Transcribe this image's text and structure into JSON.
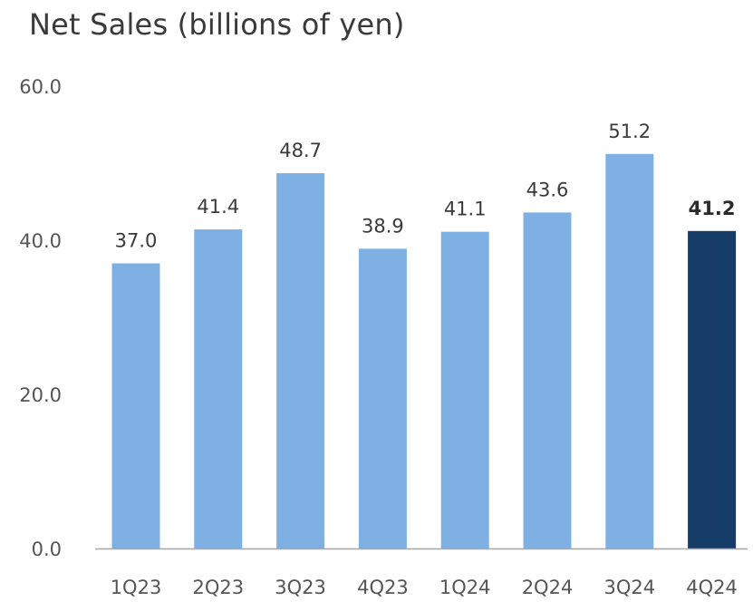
{
  "chart_data": {
    "type": "bar",
    "title": "Net Sales (billions of yen)",
    "categories": [
      "1Q23",
      "2Q23",
      "3Q23",
      "4Q23",
      "1Q24",
      "2Q24",
      "3Q24",
      "4Q24"
    ],
    "values": [
      37.0,
      41.4,
      48.7,
      38.9,
      41.1,
      43.6,
      51.2,
      41.2
    ],
    "value_labels": [
      "37.0",
      "41.4",
      "48.7",
      "38.9",
      "41.1",
      "43.6",
      "51.2",
      "41.2"
    ],
    "xlabel": "",
    "ylabel": "",
    "ylim": [
      0,
      60
    ],
    "yticks": [
      0,
      20,
      40,
      60
    ],
    "ytick_labels": [
      "0.0",
      "20.0",
      "40.0",
      "60.0"
    ],
    "grid": false,
    "legend": "none",
    "highlight_index": 7,
    "colors": {
      "bar": "#7fb0e3",
      "highlight_bar": "#163c68",
      "axis": "#a6a6a6"
    }
  }
}
